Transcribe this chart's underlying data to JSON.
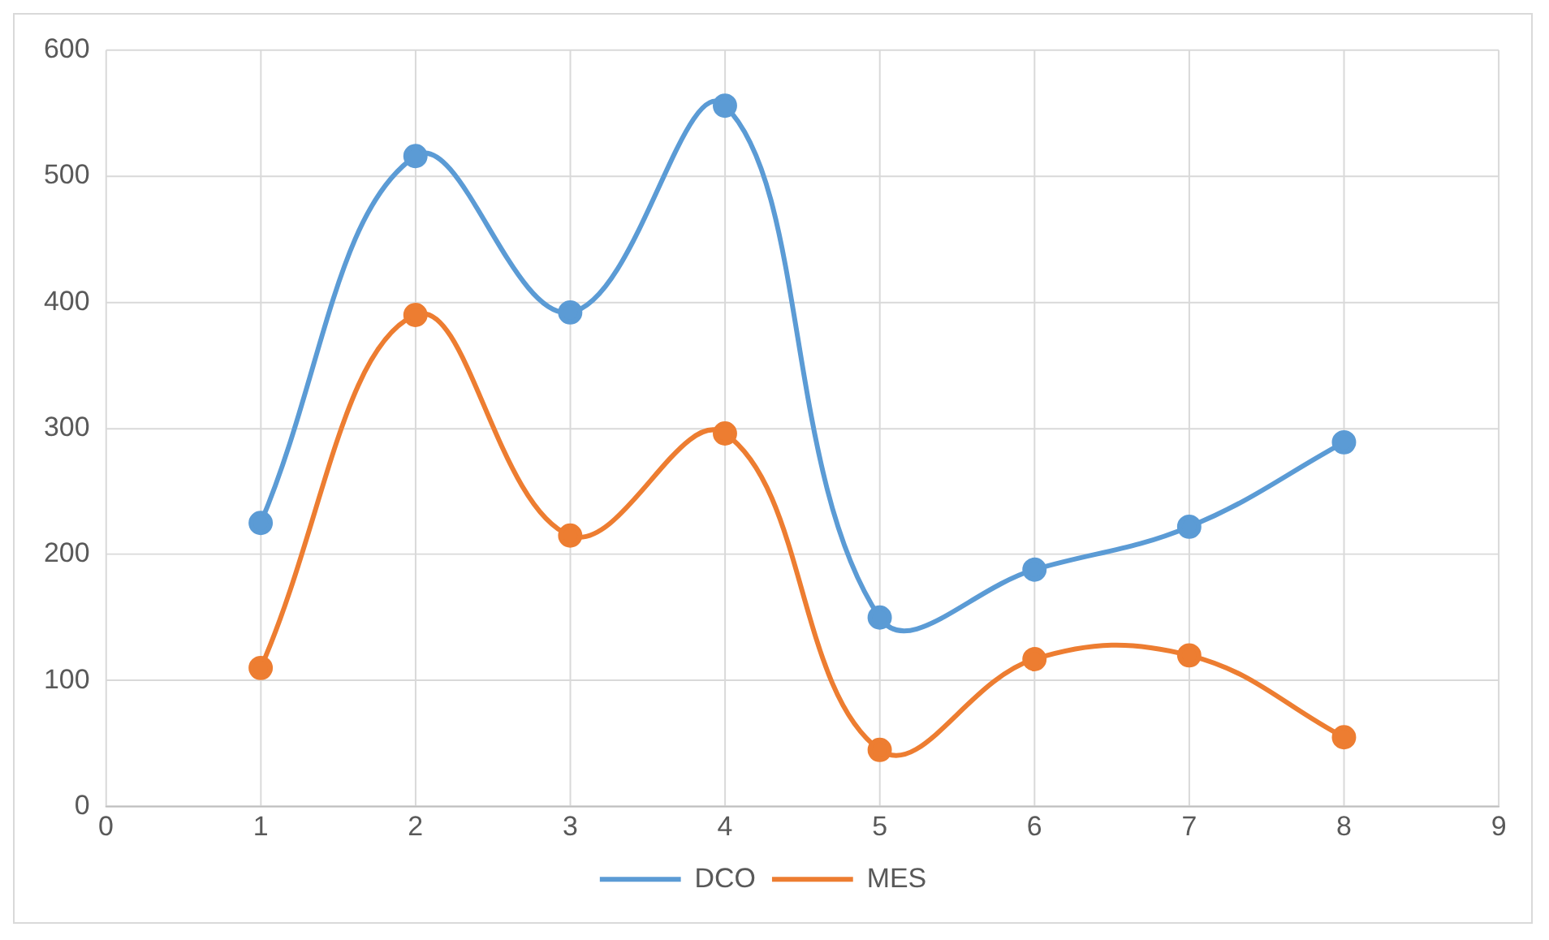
{
  "chart_data": {
    "type": "line",
    "x": [
      1,
      2,
      3,
      4,
      5,
      6,
      7,
      8
    ],
    "series": [
      {
        "name": "DCO",
        "color": "#5b9bd5",
        "values": [
          225,
          516,
          392,
          556,
          150,
          188,
          222,
          289
        ]
      },
      {
        "name": "MES",
        "color": "#ed7d31",
        "values": [
          110,
          390,
          215,
          296,
          45,
          117,
          120,
          55
        ]
      }
    ],
    "xlim": [
      0,
      9
    ],
    "xticks": [
      0,
      1,
      2,
      3,
      4,
      5,
      6,
      7,
      8,
      9
    ],
    "ylim": [
      0,
      600
    ],
    "yticks": [
      0,
      100,
      200,
      300,
      400,
      500,
      600
    ],
    "grid": true,
    "legend": "bottom",
    "marker": "circle",
    "line_style": "solid"
  }
}
